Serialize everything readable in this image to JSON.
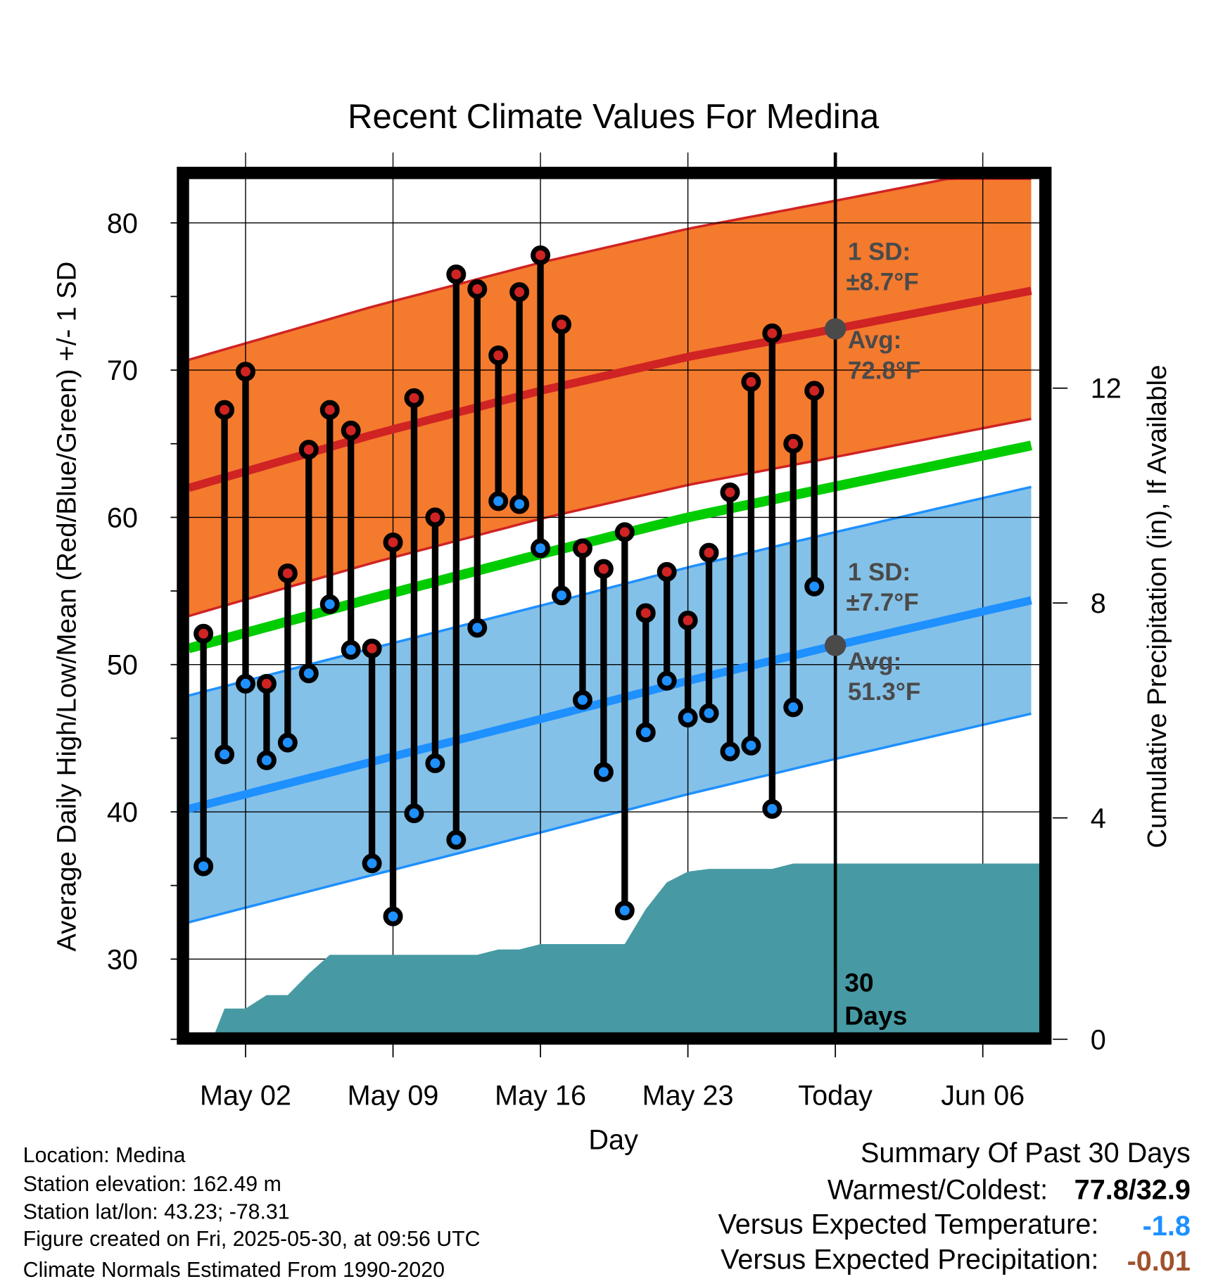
{
  "chart_data": {
    "type": "line",
    "title": "Recent Climate Values For Medina",
    "xlabel": "Day",
    "ylabel": "Average Daily High/Low/Mean (Red/Blue/Green) +/- 1 SD",
    "y2label": "Cumulative Precipitation (in), If Available",
    "ylim": [
      25,
      83
    ],
    "y2lim": [
      0,
      15.9
    ],
    "yticks": [
      30,
      40,
      50,
      60,
      70,
      80
    ],
    "y2ticks": [
      0,
      4,
      8,
      12
    ],
    "xtick_labels": [
      {
        "day": 2,
        "label": "May 02"
      },
      {
        "day": 9,
        "label": "May 09"
      },
      {
        "day": 16,
        "label": "May 16"
      },
      {
        "day": 23,
        "label": "May 23"
      },
      {
        "day": 30,
        "label": "Today"
      },
      {
        "day": 37,
        "label": "Jun 06"
      }
    ],
    "day_zero": "Apr 30",
    "xlim_days": [
      -0.7,
      39.7
    ],
    "today_day": 30,
    "days": [
      "Apr 30",
      "May 01",
      "May 02",
      "May 03",
      "May 04",
      "May 05",
      "May 06",
      "May 07",
      "May 08",
      "May 09",
      "May 10",
      "May 11",
      "May 12",
      "May 13",
      "May 14",
      "May 15",
      "May 16",
      "May 17",
      "May 18",
      "May 19",
      "May 20",
      "May 21",
      "May 22",
      "May 23",
      "May 24",
      "May 25",
      "May 26",
      "May 27",
      "May 28",
      "May 29"
    ],
    "highs": [
      52.1,
      67.3,
      69.9,
      48.7,
      56.2,
      64.6,
      67.3,
      65.9,
      51.1,
      58.3,
      68.1,
      60.0,
      76.5,
      75.5,
      71.0,
      75.3,
      77.8,
      73.1,
      57.9,
      56.5,
      59.0,
      53.5,
      56.3,
      53.0,
      57.6,
      61.7,
      69.2,
      72.5,
      65.0,
      68.6
    ],
    "lows": [
      36.3,
      43.9,
      48.7,
      43.5,
      44.7,
      49.4,
      54.1,
      51.0,
      36.5,
      32.9,
      39.9,
      43.3,
      38.1,
      52.5,
      61.1,
      60.9,
      57.9,
      54.7,
      47.6,
      42.7,
      33.3,
      45.4,
      48.9,
      46.4,
      46.7,
      44.1,
      44.5,
      40.2,
      47.1,
      55.3
    ],
    "normals": {
      "days": [
        -0.7,
        8,
        16,
        23,
        30,
        39.7
      ],
      "avg_high": [
        62.0,
        65.6,
        68.6,
        70.9,
        72.8,
        75.5
      ],
      "avg_low": [
        40.2,
        43.4,
        46.3,
        48.9,
        51.3,
        54.5
      ],
      "avg_mean": [
        51.1,
        54.5,
        57.5,
        60.0,
        62.1,
        65.0
      ],
      "sd_high": 8.7,
      "sd_low": 7.7
    },
    "precip_cumulative": [
      0,
      0.45,
      0.45,
      0.7,
      0.7,
      1.1,
      1.45,
      1.45,
      1.45,
      1.45,
      1.45,
      1.45,
      1.45,
      1.45,
      1.55,
      1.55,
      1.65,
      1.65,
      1.65,
      1.65,
      1.65,
      2.3,
      2.8,
      3.0,
      3.05,
      3.05,
      3.05,
      3.05,
      3.15,
      3.15
    ],
    "colors": {
      "high_band": "#f47a2e",
      "high_line": "#d02323",
      "low_band": "#84c1e8",
      "low_line": "#1e90ff",
      "mean_line": "#00cc00",
      "precip": "#479aa3",
      "annot": "#4a4a4a",
      "temp_anomaly": "#1e90ff",
      "precip_anomaly": "#a0522d"
    },
    "annotations": {
      "high_sd_line1": "1 SD:",
      "high_sd_line2": "±8.7°F",
      "high_avg_line1": "Avg:",
      "high_avg_line2": "72.8°F",
      "low_sd_line1": "1 SD:",
      "low_sd_line2": "±7.7°F",
      "low_avg_line1": "Avg:",
      "low_avg_line2": "51.3°F",
      "days_line1": "30",
      "days_line2": "Days"
    }
  },
  "info": {
    "location": "Location: Medina",
    "elevation": "Station elevation: 162.49 m",
    "latlon": "Station lat/lon: 43.23; -78.31",
    "created": "Figure created on Fri, 2025-05-30, at 09:56 UTC",
    "normals": "Climate Normals Estimated From 1990-2020"
  },
  "summary": {
    "title": "Summary Of Past 30 Days",
    "warm_cold_label": "Warmest/Coldest:",
    "warm_cold_value": "77.8/32.9",
    "temp_label": "Versus Expected Temperature:",
    "temp_value": "-1.8",
    "precip_label": "Versus Expected Precipitation:",
    "precip_value": "-0.01"
  }
}
